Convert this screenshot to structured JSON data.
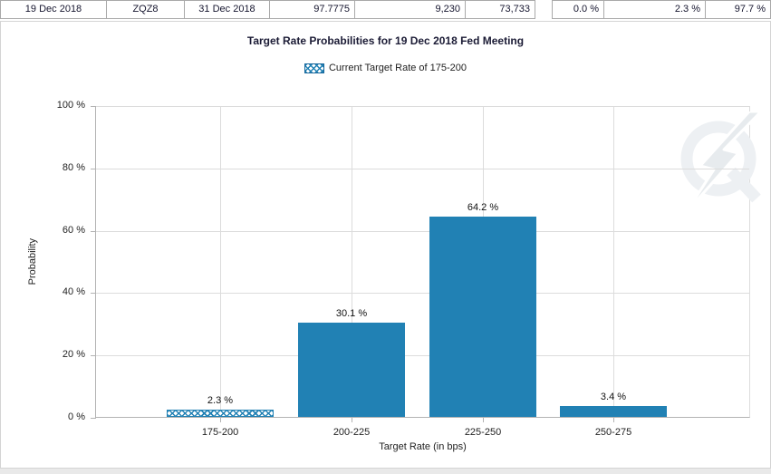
{
  "accent_color": "#2181b4",
  "grid_color": "#dcdcdc",
  "toolbar": {
    "cells_left": [
      {
        "label": "19 Dec 2018",
        "align": "center"
      },
      {
        "label": "ZQZ8",
        "align": "center"
      },
      {
        "label": "31 Dec 2018",
        "align": "center"
      },
      {
        "label": "97.7775",
        "align": "right"
      },
      {
        "label": "9,230",
        "align": "right"
      },
      {
        "label": "73,733",
        "align": "right"
      }
    ],
    "cells_right": [
      {
        "label": "0.0 %",
        "align": "right"
      },
      {
        "label": "2.3 %",
        "align": "right"
      },
      {
        "label": "97.7 %",
        "align": "right"
      }
    ]
  },
  "chart": {
    "title": "Target Rate Probabilities for 19 Dec 2018 Fed Meeting",
    "legend": {
      "label": "Current Target Rate of 175-200"
    },
    "y_axis": {
      "title": "Probability",
      "ticks": [
        "100 %",
        "80 %",
        "60 %",
        "40 %",
        "20 %",
        "0 %"
      ]
    },
    "x_axis": {
      "title": "Target Rate (in bps)"
    },
    "bars": [
      {
        "category": "175-200",
        "value": 2.3,
        "label": "2.3 %",
        "hatched": true
      },
      {
        "category": "200-225",
        "value": 30.1,
        "label": "30.1 %",
        "hatched": false
      },
      {
        "category": "225-250",
        "value": 64.2,
        "label": "64.2 %",
        "hatched": false
      },
      {
        "category": "250-275",
        "value": 3.4,
        "label": "3.4 %",
        "hatched": false
      }
    ]
  },
  "chart_data": {
    "type": "bar",
    "title": "Target Rate Probabilities for 19 Dec 2018 Fed Meeting",
    "categories": [
      "175-200",
      "200-225",
      "225-250",
      "250-275"
    ],
    "values": [
      2.3,
      30.1,
      64.2,
      3.4
    ],
    "xlabel": "Target Rate (in bps)",
    "ylabel": "Probability",
    "ylim": [
      0,
      100
    ],
    "y_tick_step": 20,
    "grid": true,
    "legend": [
      "Current Target Rate of 175-200"
    ],
    "legend_position": "top-center",
    "hatched_series_category": "175-200",
    "bar_color": "#2181b4"
  }
}
